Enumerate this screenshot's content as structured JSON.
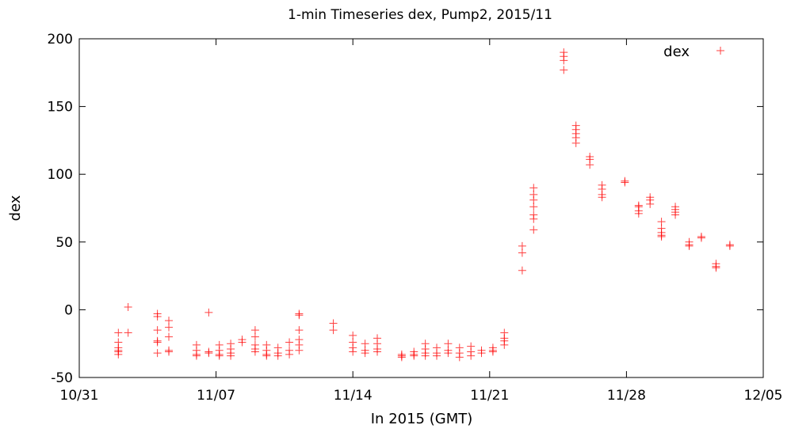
{
  "chart_data": {
    "type": "scatter",
    "title": "1-min Timeseries dex, Pump2, 2015/11",
    "xlabel": "In 2015 (GMT)",
    "ylabel": "dex",
    "x_is_date": true,
    "xlim": [
      "2015-10-31",
      "2015-12-05"
    ],
    "ylim": [
      -50,
      200
    ],
    "x_ticks": [
      "10/31",
      "11/07",
      "11/14",
      "11/21",
      "11/28",
      "12/05"
    ],
    "y_ticks": [
      "-50",
      "0",
      "50",
      "100",
      "150",
      "200"
    ],
    "grid": false,
    "legend_position": "top-right",
    "marker": "+",
    "color": "#ff0000",
    "series": [
      {
        "name": "dex",
        "points": [
          [
            "2015-11-02 00:00",
            -17
          ],
          [
            "2015-11-02 00:00",
            -24
          ],
          [
            "2015-11-02 00:00",
            -28
          ],
          [
            "2015-11-02 00:00",
            -31
          ],
          [
            "2015-11-02 00:00",
            -33
          ],
          [
            "2015-11-02 00:00",
            -30
          ],
          [
            "2015-11-02 12:00",
            2
          ],
          [
            "2015-11-02 12:00",
            -17
          ],
          [
            "2015-11-04 00:00",
            -3
          ],
          [
            "2015-11-04 00:00",
            -5
          ],
          [
            "2015-11-04 00:00",
            -15
          ],
          [
            "2015-11-04 00:00",
            -23
          ],
          [
            "2015-11-04 00:00",
            -24
          ],
          [
            "2015-11-04 00:00",
            -32
          ],
          [
            "2015-11-04 14:00",
            -8
          ],
          [
            "2015-11-04 14:00",
            -13
          ],
          [
            "2015-11-04 14:00",
            -20
          ],
          [
            "2015-11-04 14:00",
            -30
          ],
          [
            "2015-11-04 14:00",
            -31
          ],
          [
            "2015-11-06 00:00",
            -26
          ],
          [
            "2015-11-06 00:00",
            -30
          ],
          [
            "2015-11-06 00:00",
            -33
          ],
          [
            "2015-11-06 00:00",
            -34
          ],
          [
            "2015-11-06 15:00",
            -2
          ],
          [
            "2015-11-06 15:00",
            -31
          ],
          [
            "2015-11-06 15:00",
            -32
          ],
          [
            "2015-11-07 04:00",
            -26
          ],
          [
            "2015-11-07 04:00",
            -30
          ],
          [
            "2015-11-07 04:00",
            -33
          ],
          [
            "2015-11-07 04:00",
            -34
          ],
          [
            "2015-11-07 18:00",
            -25
          ],
          [
            "2015-11-07 18:00",
            -29
          ],
          [
            "2015-11-07 18:00",
            -32
          ],
          [
            "2015-11-07 18:00",
            -34
          ],
          [
            "2015-11-08 08:00",
            -22
          ],
          [
            "2015-11-08 08:00",
            -24
          ],
          [
            "2015-11-09 00:00",
            -15
          ],
          [
            "2015-11-09 00:00",
            -20
          ],
          [
            "2015-11-09 00:00",
            -26
          ],
          [
            "2015-11-09 00:00",
            -29
          ],
          [
            "2015-11-09 00:00",
            -31
          ],
          [
            "2015-11-09 14:00",
            -26
          ],
          [
            "2015-11-09 14:00",
            -30
          ],
          [
            "2015-11-09 14:00",
            -33
          ],
          [
            "2015-11-09 14:00",
            -34
          ],
          [
            "2015-11-10 04:00",
            -28
          ],
          [
            "2015-11-10 04:00",
            -32
          ],
          [
            "2015-11-10 04:00",
            -34
          ],
          [
            "2015-11-10 18:00",
            -24
          ],
          [
            "2015-11-10 18:00",
            -30
          ],
          [
            "2015-11-10 18:00",
            -33
          ],
          [
            "2015-11-11 06:00",
            -3
          ],
          [
            "2015-11-11 06:00",
            -4
          ],
          [
            "2015-11-11 06:00",
            -15
          ],
          [
            "2015-11-11 06:00",
            -22
          ],
          [
            "2015-11-11 06:00",
            -26
          ],
          [
            "2015-11-11 06:00",
            -30
          ],
          [
            "2015-11-13 00:00",
            -10
          ],
          [
            "2015-11-13 00:00",
            -15
          ],
          [
            "2015-11-14 00:00",
            -19
          ],
          [
            "2015-11-14 00:00",
            -24
          ],
          [
            "2015-11-14 00:00",
            -28
          ],
          [
            "2015-11-14 00:00",
            -31
          ],
          [
            "2015-11-14 15:00",
            -25
          ],
          [
            "2015-11-14 15:00",
            -30
          ],
          [
            "2015-11-14 15:00",
            -32
          ],
          [
            "2015-11-15 06:00",
            -21
          ],
          [
            "2015-11-15 06:00",
            -25
          ],
          [
            "2015-11-15 06:00",
            -29
          ],
          [
            "2015-11-15 06:00",
            -31
          ],
          [
            "2015-11-16 12:00",
            -33
          ],
          [
            "2015-11-16 12:00",
            -34
          ],
          [
            "2015-11-16 12:00",
            -35
          ],
          [
            "2015-11-17 03:00",
            -31
          ],
          [
            "2015-11-17 03:00",
            -33
          ],
          [
            "2015-11-17 03:00",
            -34
          ],
          [
            "2015-11-17 17:00",
            -25
          ],
          [
            "2015-11-17 17:00",
            -29
          ],
          [
            "2015-11-17 17:00",
            -32
          ],
          [
            "2015-11-17 17:00",
            -34
          ],
          [
            "2015-11-18 07:00",
            -28
          ],
          [
            "2015-11-18 07:00",
            -32
          ],
          [
            "2015-11-18 07:00",
            -34
          ],
          [
            "2015-11-18 21:00",
            -25
          ],
          [
            "2015-11-18 21:00",
            -30
          ],
          [
            "2015-11-18 21:00",
            -32
          ],
          [
            "2015-11-19 11:00",
            -28
          ],
          [
            "2015-11-19 11:00",
            -32
          ],
          [
            "2015-11-19 11:00",
            -35
          ],
          [
            "2015-11-20 01:00",
            -27
          ],
          [
            "2015-11-20 01:00",
            -31
          ],
          [
            "2015-11-20 01:00",
            -34
          ],
          [
            "2015-11-20 14:00",
            -30
          ],
          [
            "2015-11-20 14:00",
            -32
          ],
          [
            "2015-11-21 04:00",
            -28
          ],
          [
            "2015-11-21 04:00",
            -30
          ],
          [
            "2015-11-21 04:00",
            -31
          ],
          [
            "2015-11-21 18:00",
            -17
          ],
          [
            "2015-11-21 18:00",
            -21
          ],
          [
            "2015-11-21 18:00",
            -23
          ],
          [
            "2015-11-21 18:00",
            -26
          ],
          [
            "2015-11-22 16:00",
            29
          ],
          [
            "2015-11-22 16:00",
            42
          ],
          [
            "2015-11-22 16:00",
            47
          ],
          [
            "2015-11-23 06:00",
            59
          ],
          [
            "2015-11-23 06:00",
            67
          ],
          [
            "2015-11-23 06:00",
            70
          ],
          [
            "2015-11-23 06:00",
            76
          ],
          [
            "2015-11-23 06:00",
            81
          ],
          [
            "2015-11-23 06:00",
            85
          ],
          [
            "2015-11-23 06:00",
            90
          ],
          [
            "2015-11-24 19:00",
            177
          ],
          [
            "2015-11-24 19:00",
            184
          ],
          [
            "2015-11-24 19:00",
            187
          ],
          [
            "2015-11-24 19:00",
            190
          ],
          [
            "2015-11-25 10:00",
            123
          ],
          [
            "2015-11-25 10:00",
            127
          ],
          [
            "2015-11-25 10:00",
            130
          ],
          [
            "2015-11-25 10:00",
            133
          ],
          [
            "2015-11-25 10:00",
            136
          ],
          [
            "2015-11-26 03:00",
            107
          ],
          [
            "2015-11-26 03:00",
            111
          ],
          [
            "2015-11-26 03:00",
            113
          ],
          [
            "2015-11-26 18:00",
            83
          ],
          [
            "2015-11-26 18:00",
            85
          ],
          [
            "2015-11-26 18:00",
            89
          ],
          [
            "2015-11-26 18:00",
            92
          ],
          [
            "2015-11-27 22:00",
            94
          ],
          [
            "2015-11-27 22:00",
            95
          ],
          [
            "2015-11-28 15:00",
            71
          ],
          [
            "2015-11-28 15:00",
            73
          ],
          [
            "2015-11-28 15:00",
            76
          ],
          [
            "2015-11-28 15:00",
            77
          ],
          [
            "2015-11-29 05:00",
            78
          ],
          [
            "2015-11-29 05:00",
            81
          ],
          [
            "2015-11-29 05:00",
            83
          ],
          [
            "2015-11-29 19:00",
            54
          ],
          [
            "2015-11-29 19:00",
            55
          ],
          [
            "2015-11-29 19:00",
            57
          ],
          [
            "2015-11-29 19:00",
            60
          ],
          [
            "2015-11-29 19:00",
            65
          ],
          [
            "2015-11-30 12:00",
            70
          ],
          [
            "2015-11-30 12:00",
            72
          ],
          [
            "2015-11-30 12:00",
            74
          ],
          [
            "2015-11-30 12:00",
            76
          ],
          [
            "2015-12-01 05:00",
            47
          ],
          [
            "2015-12-01 05:00",
            48
          ],
          [
            "2015-12-01 05:00",
            50
          ],
          [
            "2015-12-01 20:00",
            53
          ],
          [
            "2015-12-01 20:00",
            54
          ],
          [
            "2015-12-02 14:00",
            31
          ],
          [
            "2015-12-02 14:00",
            32
          ],
          [
            "2015-12-02 14:00",
            34
          ],
          [
            "2015-12-03 07:00",
            47
          ],
          [
            "2015-12-03 07:00",
            48
          ]
        ]
      }
    ]
  }
}
